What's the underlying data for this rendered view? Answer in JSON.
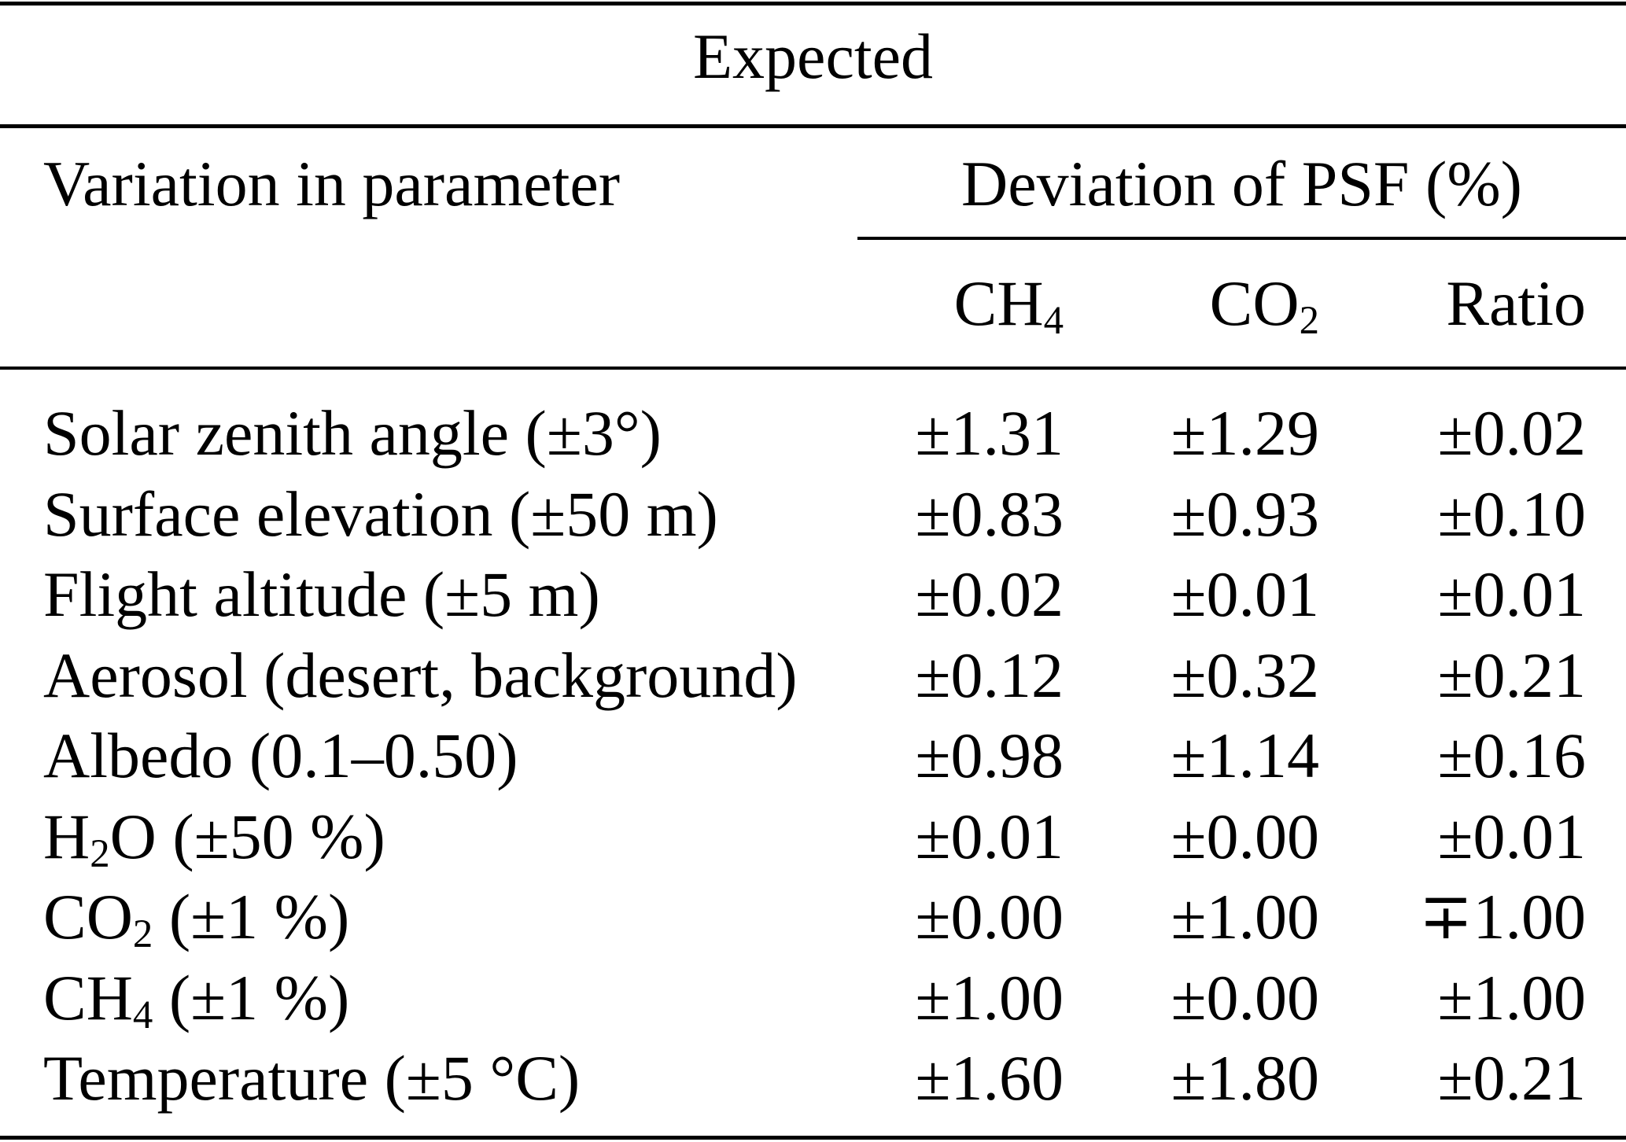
{
  "colors": {
    "ink": "#000000",
    "background": "#ffffff"
  },
  "table": {
    "spanner_title": "Expected",
    "col1_header": "Variation in parameter",
    "group_header": "Deviation of PSF (%)",
    "columns": [
      "CH~4~",
      "CO~2~",
      "Ratio"
    ],
    "rows": [
      {
        "param": "Solar zenith angle (±3°)",
        "ch4": "±1.31",
        "co2": "±1.29",
        "ratio": "±0.02"
      },
      {
        "param": "Surface elevation (±50 m)",
        "ch4": "±0.83",
        "co2": "±0.93",
        "ratio": "±0.10"
      },
      {
        "param": "Flight altitude (±5 m)",
        "ch4": "±0.02",
        "co2": "±0.01",
        "ratio": "±0.01"
      },
      {
        "param": "Aerosol (desert, background)",
        "ch4": "±0.12",
        "co2": "±0.32",
        "ratio": "±0.21"
      },
      {
        "param": "Albedo (0.1–0.50)",
        "ch4": "±0.98",
        "co2": "±1.14",
        "ratio": "±0.16"
      },
      {
        "param": "H~2~O (±50 %)",
        "ch4": "±0.01",
        "co2": "±0.00",
        "ratio": "±0.01"
      },
      {
        "param": "CO~2~ (±1 %)",
        "ch4": "±0.00",
        "co2": "±1.00",
        "ratio": "∓1.00"
      },
      {
        "param": "CH~4~ (±1 %)",
        "ch4": "±1.00",
        "co2": "±0.00",
        "ratio": "±1.00"
      },
      {
        "param": "Temperature (±5 °C)",
        "ch4": "±1.60",
        "co2": "±1.80",
        "ratio": "±0.21"
      }
    ]
  }
}
